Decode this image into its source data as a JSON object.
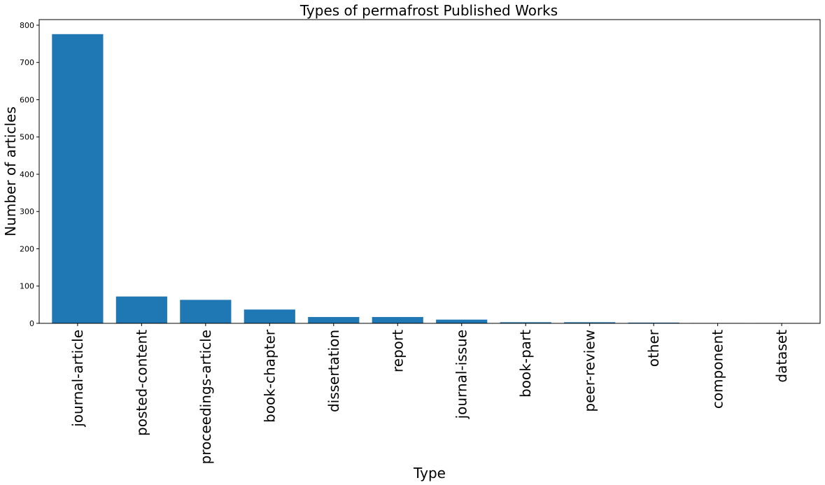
{
  "chart_data": {
    "type": "bar",
    "title": "Types of permafrost Published Works",
    "xlabel": "Type",
    "ylabel": "Number of articles",
    "categories": [
      "journal-article",
      "posted-content",
      "proceedings-article",
      "book-chapter",
      "dissertation",
      "report",
      "journal-issue",
      "book-part",
      "peer-review",
      "other",
      "component",
      "dataset"
    ],
    "values": [
      776,
      72,
      63,
      37,
      17,
      17,
      10,
      3,
      3,
      2,
      1,
      1
    ],
    "ylim": [
      0,
      815
    ],
    "yticks": [
      0,
      100,
      200,
      300,
      400,
      500,
      600,
      700,
      800
    ],
    "grid": false,
    "bar_color": "#1f77b4"
  }
}
